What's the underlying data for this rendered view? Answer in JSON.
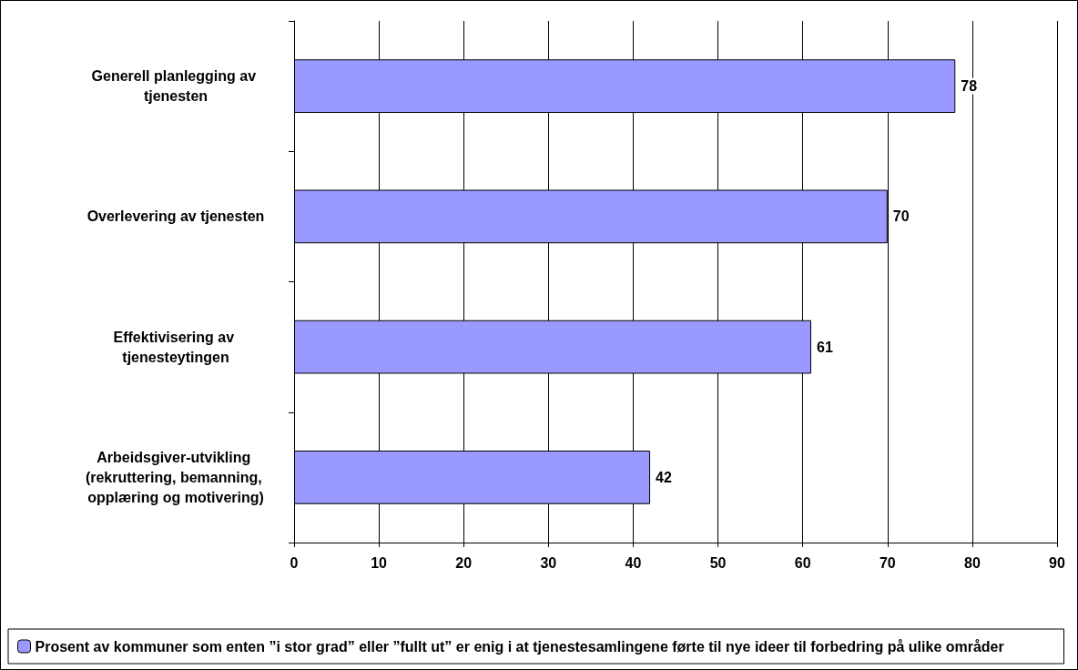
{
  "chart_data": {
    "type": "bar",
    "orientation": "horizontal",
    "categories": [
      "Generell planlegging av tjenesten",
      "Overlevering av tjenesten",
      "Effektivisering av tjenesteytingen",
      "Arbeidsgiver-utvikling (rekruttering, bemanning, opplæring og motivering)"
    ],
    "series": [
      {
        "name": "Prosent av kommuner som enten ”i stor grad” eller ”fullt ut” er enig i at tjenestesamlingene førte til nye ideer til forbedring på ulike områder",
        "color": "#9999ff",
        "values": [
          78,
          70,
          61,
          42
        ]
      }
    ],
    "xlim": [
      0,
      90
    ],
    "xticks": [
      0,
      10,
      20,
      30,
      40,
      50,
      60,
      70,
      80,
      90
    ],
    "grid": "x",
    "legend": "bottom",
    "data_labels": true
  }
}
